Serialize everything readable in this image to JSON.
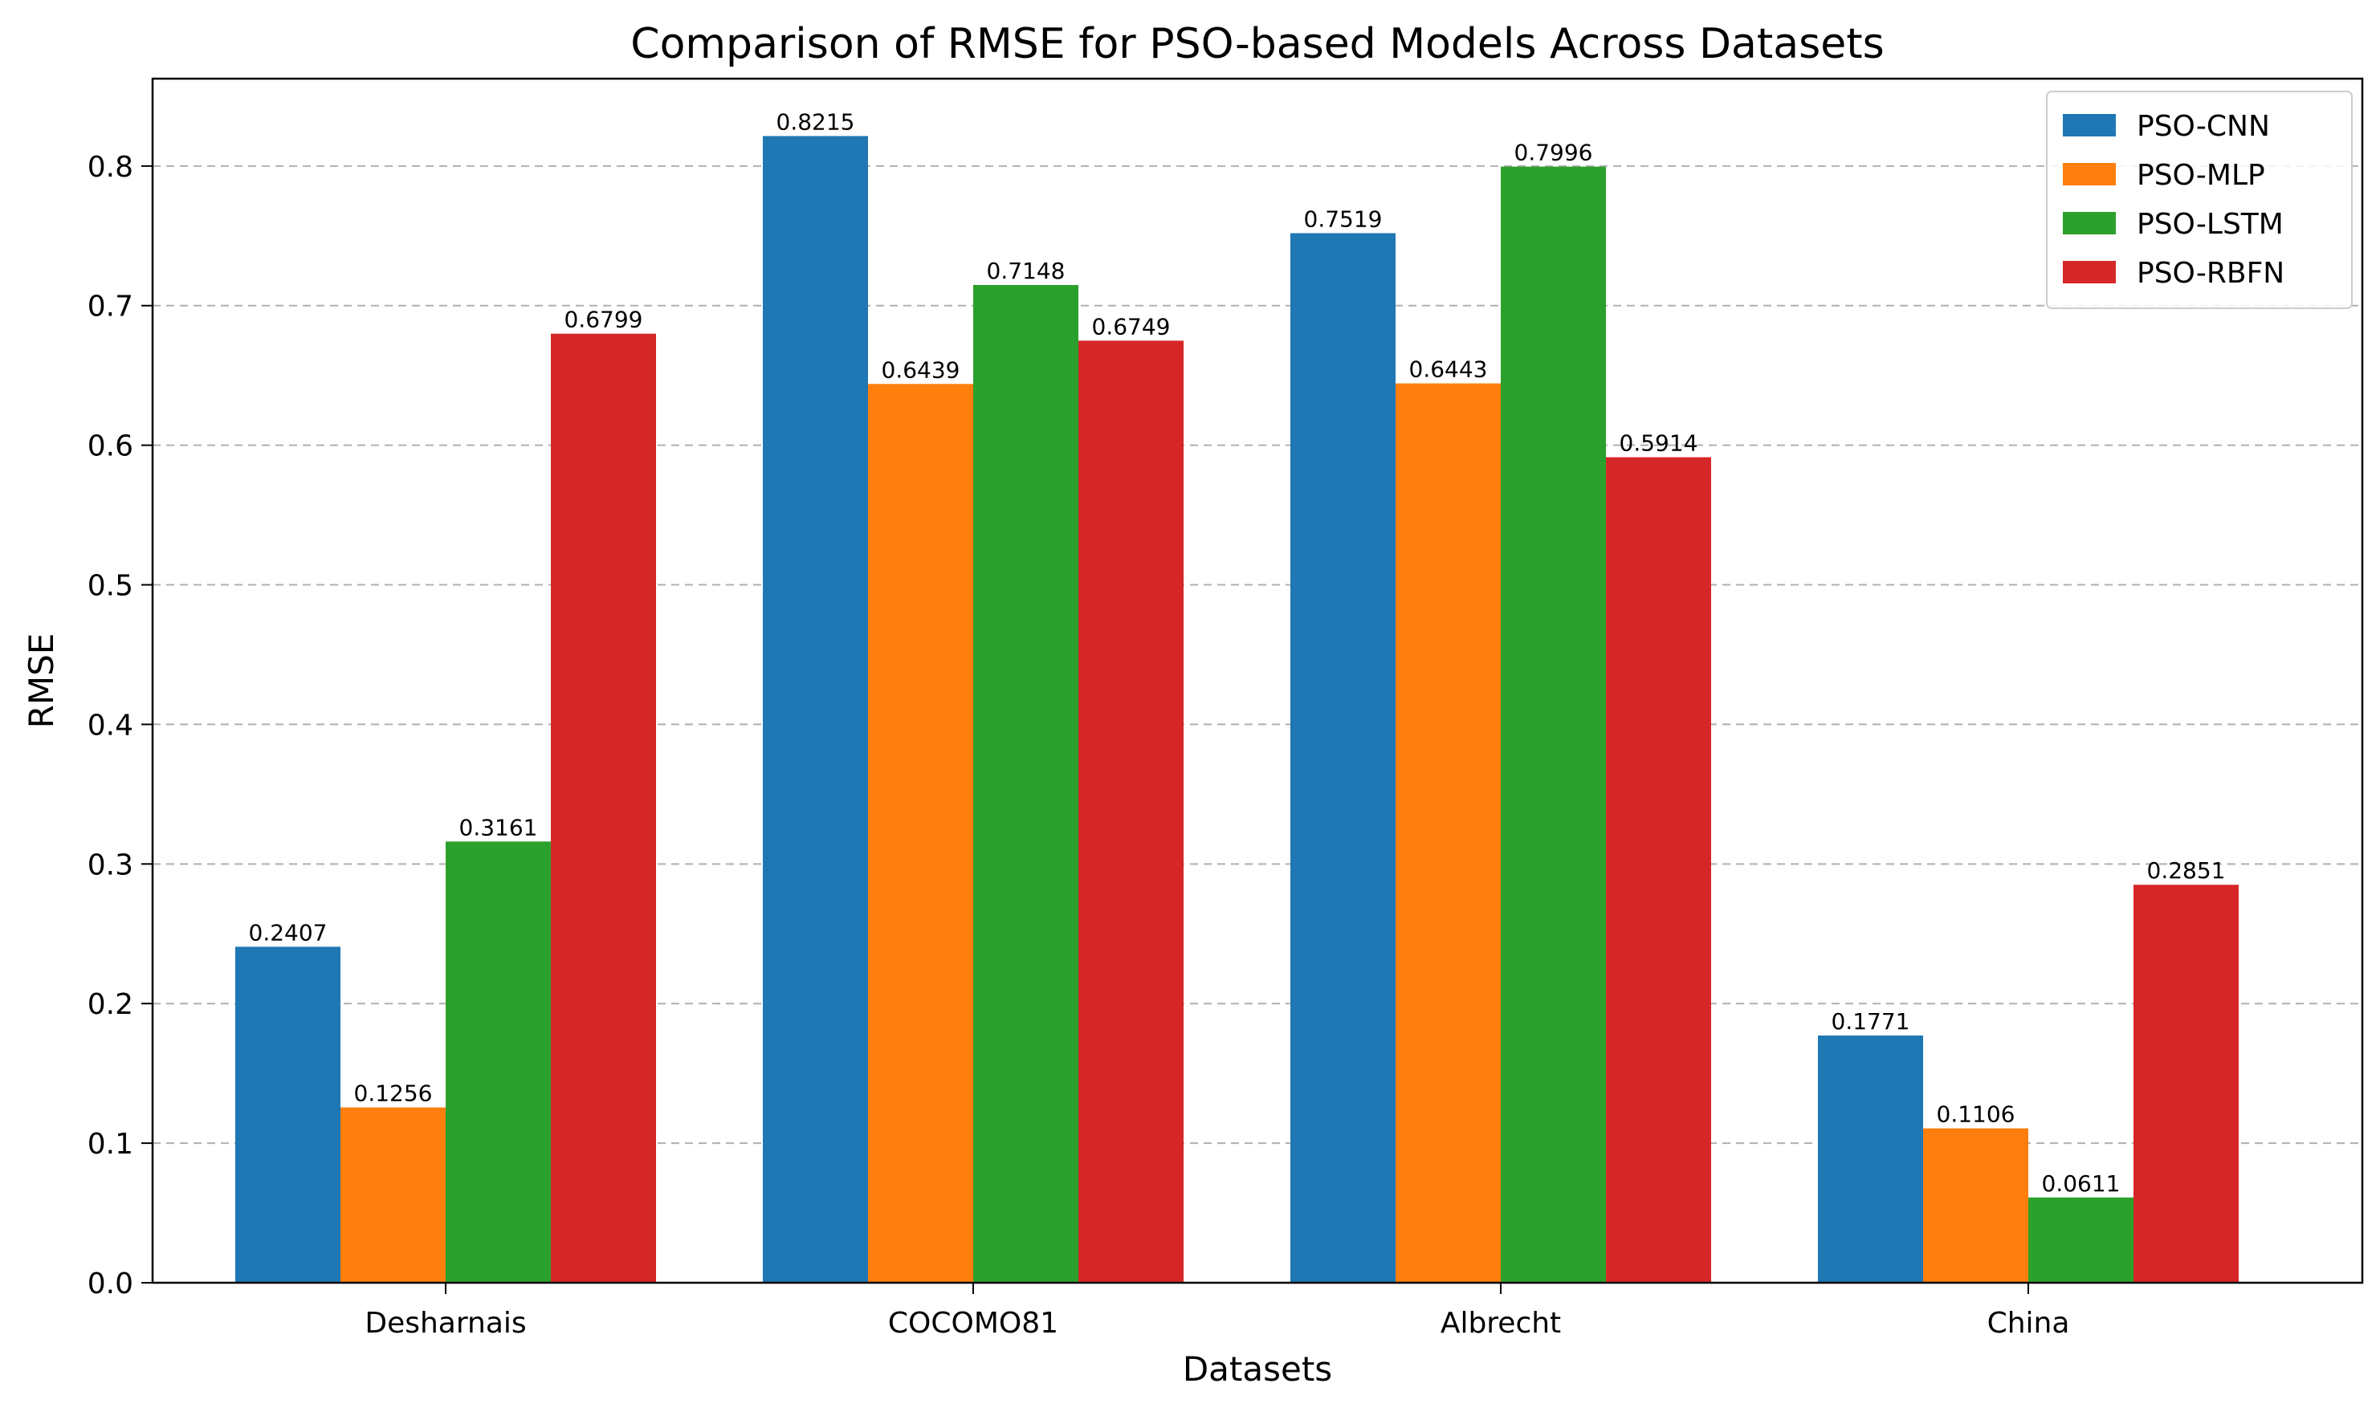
{
  "chart_data": {
    "type": "bar",
    "title": "Comparison of RMSE for PSO-based Models Across Datasets",
    "xlabel": "Datasets",
    "ylabel": "RMSE",
    "categories": [
      "Desharnais",
      "COCOMO81",
      "Albrecht",
      "China"
    ],
    "series": [
      {
        "name": "PSO-CNN",
        "color": "#1f77b4",
        "values": [
          0.2407,
          0.8215,
          0.7519,
          0.1771
        ]
      },
      {
        "name": "PSO-MLP",
        "color": "#ff7f0e",
        "values": [
          0.1256,
          0.6439,
          0.6443,
          0.1106
        ]
      },
      {
        "name": "PSO-LSTM",
        "color": "#2ca02c",
        "values": [
          0.3161,
          0.7148,
          0.7996,
          0.0611
        ]
      },
      {
        "name": "PSO-RBFN",
        "color": "#d62728",
        "values": [
          0.6799,
          0.6749,
          0.5914,
          0.2851
        ]
      }
    ],
    "ylim": [
      0,
      0.8626
    ],
    "yticks": [
      "0.0",
      "0.1",
      "0.2",
      "0.3",
      "0.4",
      "0.5",
      "0.6",
      "0.7",
      "0.8"
    ],
    "grid": "horizontal dashed",
    "legend_position": "top-right"
  }
}
